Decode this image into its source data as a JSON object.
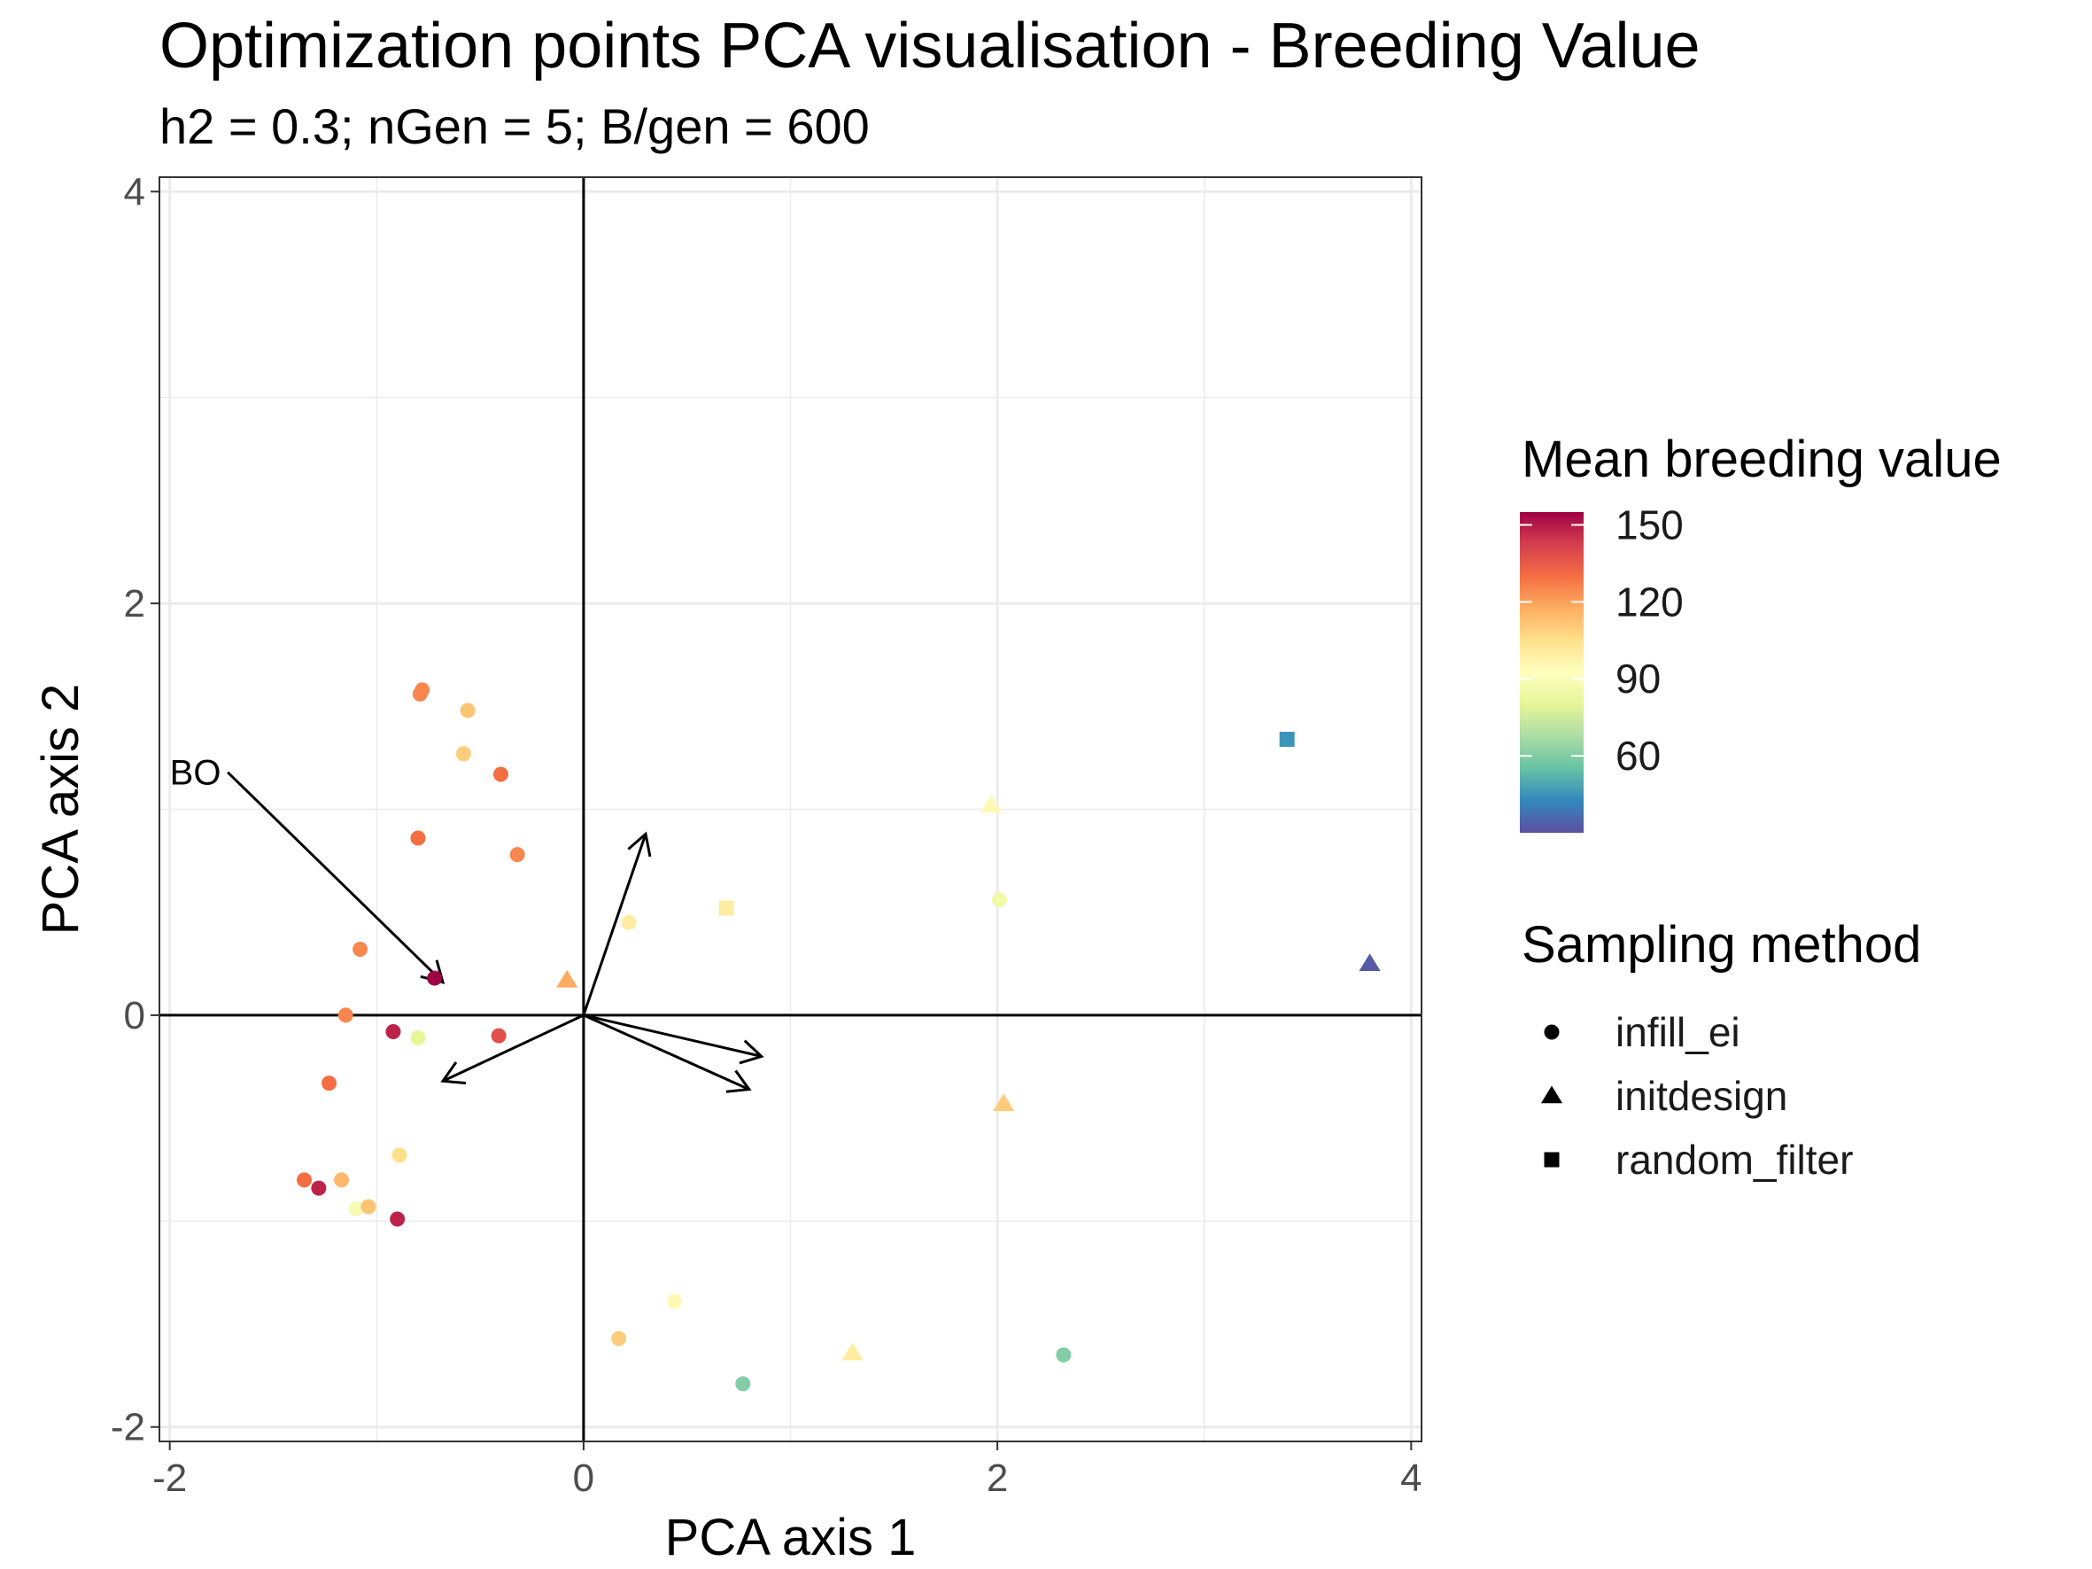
{
  "chart_data": {
    "type": "scatter",
    "title": "Optimization points PCA visualisation - Breeding Value",
    "subtitle": "h2 = 0.3; nGen = 5; B/gen = 600",
    "xlabel": "PCA axis 1",
    "ylabel": "PCA axis 2",
    "xlim": [
      -2.05,
      4.05
    ],
    "ylim": [
      -2.07,
      4.07
    ],
    "x_ticks": [
      "-2",
      "0",
      "2",
      "4"
    ],
    "y_ticks": [
      "-2",
      "0",
      "2",
      "4"
    ],
    "grid": true,
    "color_legend": {
      "title": "Mean breeding value",
      "min": 30,
      "max": 155,
      "ticks": [
        "150",
        "120",
        "90",
        "60"
      ]
    },
    "shape_legend": {
      "title": "Sampling method",
      "items": [
        {
          "label": "infill_ei",
          "shape": "circle"
        },
        {
          "label": "initdesign",
          "shape": "triangle"
        },
        {
          "label": "random_filter",
          "shape": "square"
        }
      ]
    },
    "annotation": {
      "text": "BO",
      "x": -2.0,
      "y": 1.18
    },
    "arrows": [
      {
        "from": [
          -1.72,
          1.18
        ],
        "to": [
          -0.68,
          0.16
        ]
      },
      {
        "from": [
          0,
          0
        ],
        "to": [
          0.3,
          0.88
        ]
      },
      {
        "from": [
          0,
          0
        ],
        "to": [
          0.86,
          -0.2
        ]
      },
      {
        "from": [
          0,
          0
        ],
        "to": [
          0.8,
          -0.36
        ]
      },
      {
        "from": [
          0,
          0
        ],
        "to": [
          -0.68,
          -0.32
        ]
      }
    ],
    "points": [
      {
        "x": -0.78,
        "y": 1.58,
        "value": 125,
        "method": "infill_ei"
      },
      {
        "x": -0.79,
        "y": 1.56,
        "value": 125,
        "method": "infill_ei"
      },
      {
        "x": -0.56,
        "y": 1.48,
        "value": 112,
        "method": "infill_ei"
      },
      {
        "x": -0.58,
        "y": 1.27,
        "value": 110,
        "method": "infill_ei"
      },
      {
        "x": -0.4,
        "y": 1.17,
        "value": 130,
        "method": "infill_ei"
      },
      {
        "x": -0.8,
        "y": 0.86,
        "value": 130,
        "method": "infill_ei"
      },
      {
        "x": -0.32,
        "y": 0.78,
        "value": 125,
        "method": "infill_ei"
      },
      {
        "x": -1.08,
        "y": 0.32,
        "value": 125,
        "method": "infill_ei"
      },
      {
        "x": -0.72,
        "y": 0.18,
        "value": 155,
        "method": "infill_ei"
      },
      {
        "x": -1.15,
        "y": 0.0,
        "value": 125,
        "method": "infill_ei"
      },
      {
        "x": -0.92,
        "y": -0.08,
        "value": 148,
        "method": "infill_ei"
      },
      {
        "x": -0.8,
        "y": -0.11,
        "value": 80,
        "method": "infill_ei"
      },
      {
        "x": -0.41,
        "y": -0.1,
        "value": 138,
        "method": "infill_ei"
      },
      {
        "x": -1.23,
        "y": -0.33,
        "value": 130,
        "method": "infill_ei"
      },
      {
        "x": -0.89,
        "y": -0.68,
        "value": 105,
        "method": "infill_ei"
      },
      {
        "x": -1.35,
        "y": -0.8,
        "value": 130,
        "method": "infill_ei"
      },
      {
        "x": -1.17,
        "y": -0.8,
        "value": 115,
        "method": "infill_ei"
      },
      {
        "x": -1.28,
        "y": -0.84,
        "value": 148,
        "method": "infill_ei"
      },
      {
        "x": -1.1,
        "y": -0.94,
        "value": 88,
        "method": "infill_ei"
      },
      {
        "x": -1.04,
        "y": -0.93,
        "value": 112,
        "method": "infill_ei"
      },
      {
        "x": -0.9,
        "y": -0.99,
        "value": 148,
        "method": "infill_ei"
      },
      {
        "x": 0.22,
        "y": 0.45,
        "value": 100,
        "method": "infill_ei"
      },
      {
        "x": 2.01,
        "y": 0.56,
        "value": 85,
        "method": "infill_ei"
      },
      {
        "x": 0.44,
        "y": -1.39,
        "value": 95,
        "method": "infill_ei"
      },
      {
        "x": 0.17,
        "y": -1.57,
        "value": 110,
        "method": "infill_ei"
      },
      {
        "x": 0.77,
        "y": -1.79,
        "value": 60,
        "method": "infill_ei"
      },
      {
        "x": 2.32,
        "y": -1.65,
        "value": 60,
        "method": "infill_ei"
      },
      {
        "x": -0.08,
        "y": 0.17,
        "value": 118,
        "method": "initdesign"
      },
      {
        "x": 1.97,
        "y": 1.02,
        "value": 95,
        "method": "initdesign"
      },
      {
        "x": 2.03,
        "y": -0.43,
        "value": 110,
        "method": "initdesign"
      },
      {
        "x": 1.3,
        "y": -1.64,
        "value": 100,
        "method": "initdesign"
      },
      {
        "x": 3.8,
        "y": 0.25,
        "value": 32,
        "method": "initdesign"
      },
      {
        "x": 0.69,
        "y": 0.52,
        "value": 100,
        "method": "random_filter"
      },
      {
        "x": 3.4,
        "y": 1.34,
        "value": 45,
        "method": "random_filter"
      }
    ]
  }
}
